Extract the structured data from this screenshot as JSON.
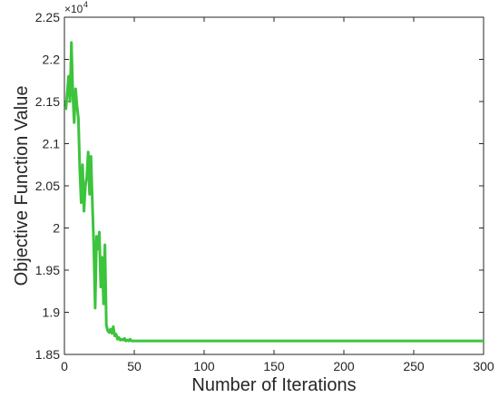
{
  "chart_data": {
    "type": "line",
    "xlabel": "Number of Iterations",
    "ylabel": "Objective Function Value",
    "y_offset_text": "×10",
    "y_offset_exponent": 4,
    "x": [
      1,
      2,
      3,
      4,
      5,
      6,
      7,
      8,
      9,
      10,
      11,
      12,
      13,
      14,
      15,
      16,
      17,
      18,
      19,
      20,
      21,
      22,
      23,
      24,
      25,
      26,
      27,
      28,
      29,
      30,
      31,
      32,
      33,
      34,
      35,
      36,
      37,
      38,
      39,
      40,
      41,
      42,
      43,
      44,
      45,
      46,
      47,
      48,
      49,
      50,
      300
    ],
    "series": [
      {
        "color": "#3cc43c",
        "values": [
          2.14,
          2.16,
          2.18,
          2.15,
          2.22,
          2.16,
          2.125,
          2.165,
          2.145,
          2.13,
          2.07,
          2.03,
          2.075,
          2.02,
          2.05,
          2.06,
          2.09,
          2.04,
          2.085,
          2.03,
          1.98,
          1.905,
          1.99,
          1.975,
          1.995,
          1.93,
          1.965,
          1.91,
          1.98,
          1.885,
          1.878,
          1.876,
          1.88,
          1.875,
          1.883,
          1.872,
          1.874,
          1.868,
          1.87,
          1.867,
          1.868,
          1.867,
          1.869,
          1.866,
          1.867,
          1.866,
          1.868,
          1.866,
          1.866,
          1.866,
          1.866
        ]
      }
    ],
    "xlim": [
      0,
      300
    ],
    "xticks": [
      0,
      50,
      100,
      150,
      200,
      250,
      300
    ],
    "ylim": [
      1.85,
      2.25
    ],
    "yticks": [
      1.85,
      1.9,
      1.95,
      2,
      2.05,
      2.1,
      2.15,
      2.2,
      2.25
    ]
  }
}
